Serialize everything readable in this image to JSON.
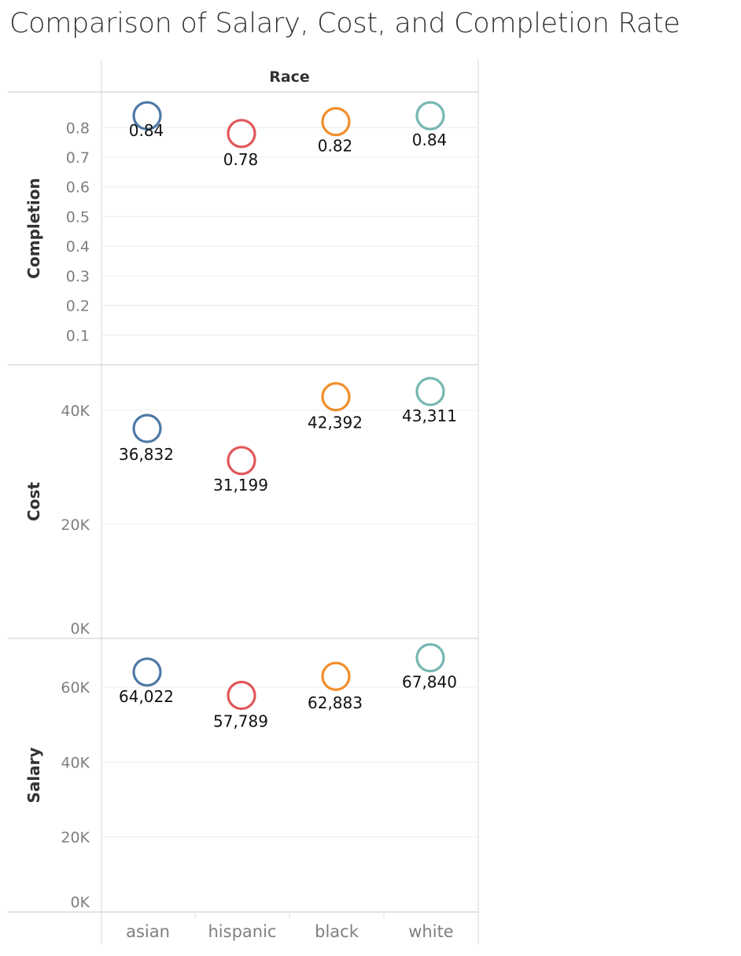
{
  "chart_data": {
    "type": "scatter",
    "title": "Comparison of Salary, Cost, and Completion Rate",
    "column_header": "Race",
    "categories": [
      "asian",
      "hispanic",
      "black",
      "white"
    ],
    "category_colors": [
      "#4e79a7",
      "#e15759",
      "#f28e2b",
      "#76b7b2"
    ],
    "panels": [
      {
        "name": "Completion",
        "ylabel": "Completion",
        "ylim": [
          0,
          0.92
        ],
        "ticks": [
          0.1,
          0.2,
          0.3,
          0.4,
          0.5,
          0.6,
          0.7,
          0.8
        ],
        "tick_labels": [
          "0.1",
          "0.2",
          "0.3",
          "0.4",
          "0.5",
          "0.6",
          "0.7",
          "0.8"
        ],
        "values": [
          0.84,
          0.78,
          0.82,
          0.84
        ],
        "value_labels": [
          "0.84",
          "0.78",
          "0.82",
          "0.84"
        ]
      },
      {
        "name": "Cost",
        "ylabel": "Cost",
        "ylim": [
          0,
          48000
        ],
        "ticks": [
          0,
          20000,
          40000
        ],
        "tick_labels": [
          "0K",
          "20K",
          "40K"
        ],
        "values": [
          36832,
          31199,
          42392,
          43311
        ],
        "value_labels": [
          "36,832",
          "31,199",
          "42,392",
          "43,311"
        ]
      },
      {
        "name": "Salary",
        "ylabel": "Salary",
        "ylim": [
          0,
          73000
        ],
        "ticks": [
          0,
          20000,
          40000,
          60000
        ],
        "tick_labels": [
          "0K",
          "20K",
          "40K",
          "60K"
        ],
        "values": [
          64022,
          57789,
          62883,
          67840
        ],
        "value_labels": [
          "64,022",
          "57,789",
          "62,883",
          "67,840"
        ]
      }
    ]
  }
}
